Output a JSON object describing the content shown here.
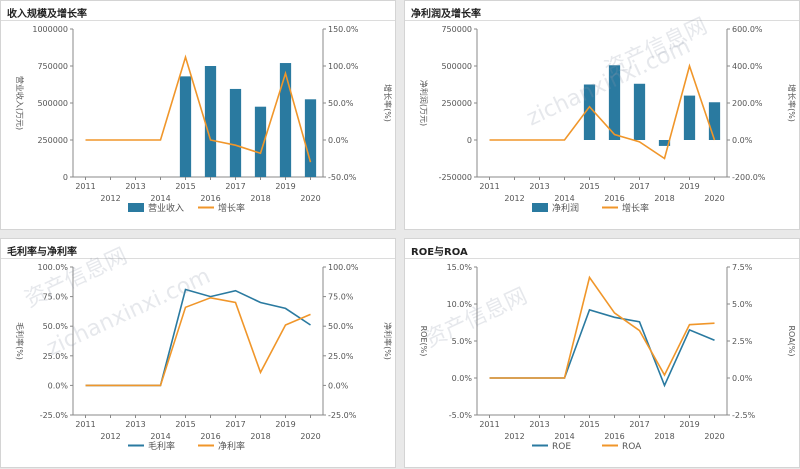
{
  "colors": {
    "blue": "#2a7aa0",
    "orange": "#f0962a"
  },
  "watermark": {
    "text_cn": "资产信息网",
    "text_en": "zichanxinxi.com"
  },
  "chart_data": [
    {
      "id": "revenue",
      "type": "bar+line",
      "title": "收入规模及增长率",
      "ylabel": "营业收入(万元)",
      "ylabel2": "增长率(%)",
      "categories": [
        "2011",
        "2012",
        "2013",
        "2014",
        "2015",
        "2016",
        "2017",
        "2018",
        "2019",
        "2020"
      ],
      "ylim": [
        0,
        1000000
      ],
      "yticks": [
        "0",
        "250000",
        "500000",
        "750000",
        "1000000"
      ],
      "y2lim": [
        -50,
        150
      ],
      "y2ticks": [
        "-50.0%",
        "0.0%",
        "50.0%",
        "100.0%",
        "150.0%"
      ],
      "series": [
        {
          "name": "营业收入",
          "kind": "bar",
          "axis": "left",
          "color": "#2a7aa0",
          "values": [
            0,
            0,
            0,
            0,
            680000,
            750000,
            595000,
            475000,
            770000,
            525000
          ]
        },
        {
          "name": "增长率",
          "kind": "line",
          "axis": "right",
          "color": "#f0962a",
          "values": [
            0,
            0,
            0,
            0,
            112,
            0,
            -7,
            -18,
            90,
            -30
          ]
        }
      ]
    },
    {
      "id": "profit",
      "type": "bar+line",
      "title": "净利润及增长率",
      "ylabel": "净利润(万元)",
      "ylabel2": "增长率(%)",
      "categories": [
        "2011",
        "2012",
        "2013",
        "2014",
        "2015",
        "2016",
        "2017",
        "2018",
        "2019",
        "2020"
      ],
      "ylim": [
        -250000,
        750000
      ],
      "yticks": [
        "-250000",
        "0",
        "250000",
        "500000",
        "750000"
      ],
      "y2lim": [
        -200,
        600
      ],
      "y2ticks": [
        "-200.0%",
        "0.0%",
        "200.0%",
        "400.0%",
        "600.0%"
      ],
      "series": [
        {
          "name": "净利润",
          "kind": "bar",
          "axis": "left",
          "color": "#2a7aa0",
          "values": [
            0,
            0,
            0,
            0,
            375000,
            505000,
            380000,
            -40000,
            300000,
            255000
          ]
        },
        {
          "name": "增长率",
          "kind": "line",
          "axis": "right",
          "color": "#f0962a",
          "values": [
            0,
            0,
            0,
            0,
            180,
            30,
            -10,
            -100,
            400,
            0
          ]
        }
      ]
    },
    {
      "id": "margin",
      "type": "line",
      "title": "毛利率与净利率",
      "ylabel": "毛利率(%)",
      "ylabel2": "净利率(%)",
      "categories": [
        "2011",
        "2012",
        "2013",
        "2014",
        "2015",
        "2016",
        "2017",
        "2018",
        "2019",
        "2020"
      ],
      "ylim": [
        -25,
        100
      ],
      "yticks": [
        "-25.0%",
        "0.0%",
        "25.0%",
        "50.0%",
        "75.0%",
        "100.0%"
      ],
      "y2lim": [
        -25,
        100
      ],
      "y2ticks": [
        "-25.0%",
        "0.0%",
        "25.0%",
        "50.0%",
        "75.0%",
        "100.0%"
      ],
      "series": [
        {
          "name": "毛利率",
          "kind": "line",
          "axis": "left",
          "color": "#2a7aa0",
          "values": [
            0,
            0,
            0,
            0,
            81,
            75,
            80,
            70,
            65,
            51
          ]
        },
        {
          "name": "净利率",
          "kind": "line",
          "axis": "right",
          "color": "#f0962a",
          "values": [
            0,
            0,
            0,
            0,
            66,
            74,
            70,
            11,
            51,
            60
          ]
        }
      ]
    },
    {
      "id": "roe",
      "type": "line",
      "title": "ROE与ROA",
      "ylabel": "ROE(%)",
      "ylabel2": "ROA(%)",
      "categories": [
        "2011",
        "2012",
        "2013",
        "2014",
        "2015",
        "2016",
        "2017",
        "2018",
        "2019",
        "2020"
      ],
      "ylim": [
        -5,
        15
      ],
      "yticks": [
        "-5.0%",
        "0.0%",
        "5.0%",
        "10.0%",
        "15.0%"
      ],
      "y2lim": [
        -2.5,
        7.5
      ],
      "y2ticks": [
        "-2.5%",
        "0.0%",
        "2.5%",
        "5.0%",
        "7.5%"
      ],
      "series": [
        {
          "name": "ROE",
          "kind": "line",
          "axis": "left",
          "color": "#2a7aa0",
          "values": [
            0,
            0,
            0,
            0,
            9.2,
            8.2,
            7.6,
            -1.0,
            6.5,
            5.1
          ]
        },
        {
          "name": "ROA",
          "kind": "line",
          "axis": "right",
          "color": "#f0962a",
          "values": [
            0,
            0,
            0,
            0,
            6.8,
            4.4,
            3.2,
            0.2,
            3.6,
            3.7
          ]
        }
      ]
    }
  ]
}
